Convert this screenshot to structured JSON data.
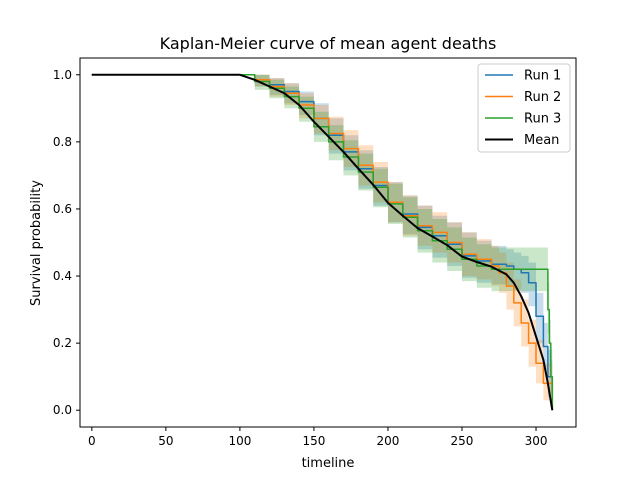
{
  "chart_data": {
    "type": "line",
    "title": "Kaplan-Meier curve of mean agent deaths",
    "xlabel": "timeline",
    "ylabel": "Survival probability",
    "xlim": [
      -8,
      327
    ],
    "ylim": [
      -0.05,
      1.05
    ],
    "xticks": [
      0,
      50,
      100,
      150,
      200,
      250,
      300
    ],
    "yticks": [
      0.0,
      0.2,
      0.4,
      0.6,
      0.8,
      1.0
    ],
    "xtick_labels": [
      "0",
      "50",
      "100",
      "150",
      "200",
      "250",
      "300"
    ],
    "ytick_labels": [
      "0.0",
      "0.2",
      "0.4",
      "0.6",
      "0.8",
      "1.0"
    ],
    "legend_position": "top-right",
    "grid": false,
    "series": [
      {
        "name": "Run 1",
        "color": "#1f77b4",
        "step": true,
        "x": [
          0,
          100,
          110,
          120,
          130,
          140,
          150,
          160,
          170,
          180,
          190,
          200,
          210,
          220,
          230,
          240,
          250,
          260,
          270,
          280,
          285,
          290,
          295,
          300,
          305,
          308,
          311
        ],
        "y": [
          1.0,
          1.0,
          0.985,
          0.97,
          0.95,
          0.92,
          0.87,
          0.82,
          0.77,
          0.72,
          0.67,
          0.62,
          0.585,
          0.545,
          0.52,
          0.495,
          0.46,
          0.445,
          0.435,
          0.43,
          0.42,
          0.41,
          0.38,
          0.28,
          0.19,
          0.1,
          0.0
        ],
        "ci_upper": [
          1.0,
          1.0,
          1.0,
          0.99,
          0.975,
          0.95,
          0.915,
          0.87,
          0.82,
          0.775,
          0.725,
          0.68,
          0.64,
          0.61,
          0.58,
          0.56,
          0.53,
          0.505,
          0.49,
          0.48,
          0.47,
          0.46,
          0.44,
          0.35,
          0.26,
          0.18,
          0.05
        ],
        "ci_lower": [
          1.0,
          1.0,
          0.965,
          0.94,
          0.915,
          0.88,
          0.82,
          0.765,
          0.715,
          0.66,
          0.61,
          0.56,
          0.525,
          0.48,
          0.455,
          0.43,
          0.395,
          0.38,
          0.375,
          0.37,
          0.36,
          0.35,
          0.31,
          0.2,
          0.12,
          0.04,
          0.0
        ]
      },
      {
        "name": "Run 2",
        "color": "#ff7f0e",
        "step": true,
        "x": [
          0,
          100,
          110,
          120,
          130,
          140,
          150,
          160,
          170,
          180,
          190,
          200,
          210,
          220,
          230,
          240,
          250,
          260,
          270,
          275,
          280,
          285,
          290,
          295,
          300,
          305,
          311
        ],
        "y": [
          1.0,
          1.0,
          0.985,
          0.965,
          0.945,
          0.91,
          0.87,
          0.825,
          0.78,
          0.73,
          0.68,
          0.62,
          0.58,
          0.55,
          0.53,
          0.5,
          0.465,
          0.45,
          0.43,
          0.41,
          0.37,
          0.32,
          0.26,
          0.2,
          0.14,
          0.08,
          0.0
        ],
        "ci_upper": [
          1.0,
          1.0,
          1.0,
          0.99,
          0.975,
          0.945,
          0.91,
          0.875,
          0.835,
          0.79,
          0.74,
          0.68,
          0.64,
          0.61,
          0.59,
          0.56,
          0.53,
          0.51,
          0.49,
          0.47,
          0.44,
          0.39,
          0.33,
          0.27,
          0.21,
          0.14,
          0.03
        ],
        "ci_lower": [
          1.0,
          1.0,
          0.965,
          0.935,
          0.91,
          0.87,
          0.825,
          0.775,
          0.725,
          0.67,
          0.62,
          0.56,
          0.52,
          0.49,
          0.47,
          0.44,
          0.4,
          0.39,
          0.37,
          0.35,
          0.3,
          0.25,
          0.19,
          0.13,
          0.08,
          0.03,
          0.0
        ]
      },
      {
        "name": "Run 3",
        "color": "#2ca02c",
        "step": true,
        "x": [
          0,
          100,
          110,
          120,
          130,
          140,
          150,
          160,
          170,
          180,
          190,
          200,
          210,
          220,
          230,
          240,
          250,
          260,
          270,
          280,
          290,
          300,
          305,
          308,
          309,
          310,
          311
        ],
        "y": [
          1.0,
          1.0,
          0.98,
          0.96,
          0.935,
          0.9,
          0.845,
          0.8,
          0.755,
          0.71,
          0.665,
          0.615,
          0.575,
          0.535,
          0.505,
          0.48,
          0.45,
          0.43,
          0.42,
          0.42,
          0.42,
          0.42,
          0.42,
          0.3,
          0.2,
          0.1,
          0.0
        ],
        "ci_upper": [
          1.0,
          1.0,
          1.0,
          0.985,
          0.965,
          0.935,
          0.89,
          0.85,
          0.805,
          0.765,
          0.72,
          0.675,
          0.635,
          0.6,
          0.57,
          0.545,
          0.515,
          0.495,
          0.485,
          0.485,
          0.485,
          0.485,
          0.485,
          0.38,
          0.27,
          0.15,
          0.02
        ],
        "ci_lower": [
          1.0,
          1.0,
          0.955,
          0.93,
          0.9,
          0.86,
          0.8,
          0.745,
          0.7,
          0.655,
          0.605,
          0.555,
          0.515,
          0.47,
          0.44,
          0.415,
          0.385,
          0.365,
          0.355,
          0.355,
          0.355,
          0.355,
          0.355,
          0.23,
          0.13,
          0.05,
          0.0
        ]
      },
      {
        "name": "Mean",
        "color": "#000000",
        "step": false,
        "x": [
          0,
          100,
          110,
          120,
          130,
          140,
          150,
          160,
          170,
          180,
          190,
          200,
          210,
          220,
          230,
          240,
          250,
          260,
          270,
          280,
          285,
          290,
          295,
          300,
          305,
          308,
          311
        ],
        "y": [
          1.0,
          1.0,
          0.985,
          0.965,
          0.945,
          0.91,
          0.86,
          0.815,
          0.77,
          0.72,
          0.672,
          0.618,
          0.58,
          0.543,
          0.518,
          0.492,
          0.458,
          0.442,
          0.428,
          0.405,
          0.38,
          0.34,
          0.29,
          0.22,
          0.15,
          0.08,
          0.0
        ]
      }
    ]
  }
}
